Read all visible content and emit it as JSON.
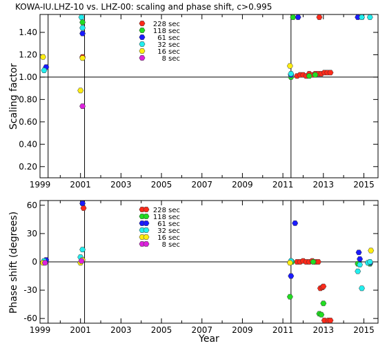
{
  "title": "KOWA-IU.LHZ-10 vs. LHZ-00: scaling and phase shift, c>0.995",
  "xlabel": "Year",
  "colors": {
    "228 sec": "#ff2a1a",
    "118 sec": "#22dd22",
    "61 sec": "#1a1aff",
    "32 sec": "#22eeee",
    "16 sec": "#ffee11",
    "8 sec": "#dd22dd"
  },
  "chart_data": [
    {
      "type": "scatter",
      "ylabel": "Scaling factor",
      "xlim": [
        1999,
        2015.7
      ],
      "ylim": [
        0.1,
        1.56
      ],
      "x_ticks": [
        1999,
        2001,
        2003,
        2005,
        2007,
        2009,
        2011,
        2013,
        2015
      ],
      "x_tick_labels": [
        "1999",
        "2001",
        "2003",
        "2005",
        "2007",
        "2009",
        "2011",
        "2013",
        "2015"
      ],
      "y_ticks": [
        0.2,
        0.4,
        0.6,
        0.8,
        1.0,
        1.2,
        1.4
      ],
      "y_tick_labels": [
        "0.20",
        "0.40",
        "0.60",
        "0.80",
        "1.00",
        "1.20",
        "1.40"
      ],
      "reference_line_y": 1.0,
      "vertical_lines_x": [
        1999.4,
        2001.2,
        2011.4
      ],
      "legend": {
        "position": "top-left",
        "entries": [
          "228 sec",
          "118 sec",
          "61 sec",
          "32 sec",
          "16 sec",
          "8 sec"
        ]
      },
      "series": [
        {
          "name": "228 sec",
          "points": [
            [
              2001.1,
              1.18
            ],
            [
              2011.7,
              1.01
            ],
            [
              2011.85,
              1.02
            ],
            [
              2012.0,
              1.02
            ],
            [
              2012.15,
              1.01
            ],
            [
              2012.3,
              1.03
            ],
            [
              2012.45,
              1.02
            ],
            [
              2012.6,
              1.03
            ],
            [
              2012.75,
              1.03
            ],
            [
              2012.9,
              1.03
            ],
            [
              2013.05,
              1.04
            ],
            [
              2013.2,
              1.04
            ],
            [
              2013.35,
              1.04
            ],
            [
              2012.8,
              1.55
            ]
          ]
        },
        {
          "name": "118 sec",
          "points": [
            [
              2001.1,
              1.49
            ],
            [
              2011.4,
              1.0
            ],
            [
              2011.5,
              1.56
            ],
            [
              2012.3,
              1.01
            ],
            [
              2012.6,
              1.02
            ]
          ]
        },
        {
          "name": "61 sec",
          "points": [
            [
              1999.3,
              1.09
            ],
            [
              2001.1,
              1.39
            ],
            [
              2011.4,
              1.02
            ],
            [
              2011.75,
              1.55
            ],
            [
              2014.7,
              1.56
            ]
          ]
        },
        {
          "name": "32 sec",
          "points": [
            [
              1999.2,
              1.06
            ],
            [
              2001.1,
              1.44
            ],
            [
              2001.05,
              1.55
            ],
            [
              2011.4,
              1.03
            ],
            [
              2014.9,
              1.55
            ],
            [
              2015.3,
              1.55
            ]
          ]
        },
        {
          "name": "16 sec",
          "points": [
            [
              1999.15,
              1.18
            ],
            [
              2001.0,
              0.88
            ],
            [
              2001.1,
              1.17
            ],
            [
              2011.35,
              1.1
            ]
          ]
        },
        {
          "name": "8 sec",
          "points": [
            [
              2001.1,
              0.74
            ]
          ]
        }
      ]
    },
    {
      "type": "scatter",
      "ylabel": "Phase shift (degrees)",
      "xlim": [
        1999,
        2015.7
      ],
      "ylim": [
        -65,
        65
      ],
      "x_ticks": [
        1999,
        2001,
        2003,
        2005,
        2007,
        2009,
        2011,
        2013,
        2015
      ],
      "x_tick_labels": [
        "1999",
        "2001",
        "2003",
        "2005",
        "2007",
        "2009",
        "2011",
        "2013",
        "2015"
      ],
      "y_ticks": [
        -60,
        -30,
        0,
        30,
        60
      ],
      "y_tick_labels": [
        "-60",
        "-30",
        "0",
        "30",
        "60"
      ],
      "reference_line_y": 0,
      "vertical_lines_x": [
        1999.4,
        2001.2,
        2011.4
      ],
      "legend": {
        "position": "top-left",
        "entries": [
          "228 sec",
          "118 sec",
          "61 sec",
          "32 sec",
          "16 sec",
          "8 sec"
        ]
      },
      "series": [
        {
          "name": "228 sec",
          "points": [
            [
              2001.15,
              57
            ],
            [
              2011.7,
              0
            ],
            [
              2011.85,
              0
            ],
            [
              2012.0,
              1
            ],
            [
              2012.15,
              0
            ],
            [
              2012.3,
              0
            ],
            [
              2012.45,
              1
            ],
            [
              2012.6,
              0
            ],
            [
              2012.75,
              0
            ],
            [
              2012.85,
              -28
            ],
            [
              2012.95,
              -27
            ],
            [
              2013.0,
              -26
            ],
            [
              2013.05,
              -66
            ],
            [
              2013.25,
              -66
            ],
            [
              2013.35,
              -66
            ]
          ]
        },
        {
          "name": "118 sec",
          "points": [
            [
              2011.35,
              -37
            ],
            [
              2011.45,
              0
            ],
            [
              2012.5,
              0
            ],
            [
              2012.8,
              -55
            ],
            [
              2012.9,
              -56
            ],
            [
              2013.0,
              -44
            ],
            [
              2014.7,
              -2
            ],
            [
              2015.3,
              -2
            ]
          ]
        },
        {
          "name": "61 sec",
          "points": [
            [
              1999.3,
              2
            ],
            [
              2001.1,
              62
            ],
            [
              2011.4,
              -15
            ],
            [
              2011.6,
              41
            ],
            [
              2014.75,
              10
            ],
            [
              2014.8,
              3
            ],
            [
              2015.3,
              -1
            ]
          ]
        },
        {
          "name": "32 sec",
          "points": [
            [
              1999.2,
              1
            ],
            [
              2001.0,
              5
            ],
            [
              2001.1,
              13
            ],
            [
              2011.4,
              1
            ],
            [
              2014.7,
              -10
            ],
            [
              2014.8,
              -3
            ],
            [
              2014.9,
              -28
            ],
            [
              2015.2,
              -1
            ],
            [
              2015.3,
              0
            ]
          ]
        },
        {
          "name": "16 sec",
          "points": [
            [
              1999.15,
              -1
            ],
            [
              2001.0,
              -1
            ],
            [
              2001.1,
              2
            ],
            [
              2011.35,
              -1
            ],
            [
              2015.35,
              12
            ]
          ]
        },
        {
          "name": "8 sec",
          "points": [
            [
              1999.25,
              -1
            ],
            [
              2001.05,
              1
            ]
          ]
        }
      ]
    }
  ]
}
